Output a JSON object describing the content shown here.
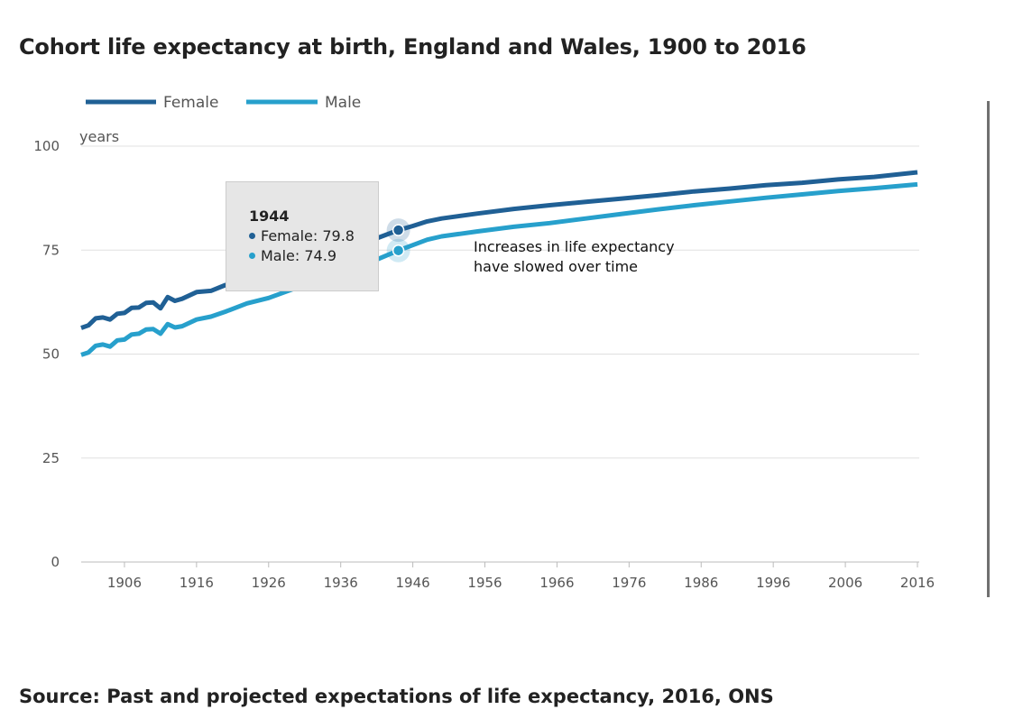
{
  "title": "Cohort life expectancy at birth, England and Wales, 1900 to 2016",
  "source": "Source: Past and projected expectations of life expectancy, 2016, ONS",
  "colors": {
    "female": "#206095",
    "male": "#27a0cc",
    "grid": "#e0e0e0",
    "axis": "#bbbbbb"
  },
  "tooltip": {
    "year": "1944",
    "female": "Female: 79.8",
    "male": "Male: 74.9"
  },
  "annotation": [
    "Increases in life expectancy",
    "have slowed over time"
  ],
  "chart_data": {
    "type": "line",
    "title": "Cohort life expectancy at birth, England and Wales, 1900 to 2016",
    "ylabel": "years",
    "xlabel": "",
    "ylim": [
      0,
      100
    ],
    "xlim": [
      1900,
      2016
    ],
    "yticks": [
      0,
      25,
      50,
      75,
      100
    ],
    "xticks": [
      1906,
      1916,
      1926,
      1936,
      1946,
      1956,
      1966,
      1976,
      1986,
      1996,
      2006,
      2016
    ],
    "grid": true,
    "legend_position": "top-left",
    "highlight_year": 1944,
    "series": [
      {
        "name": "Female",
        "color": "#206095",
        "x": [
          1900,
          1901,
          1902,
          1903,
          1904,
          1905,
          1906,
          1907,
          1908,
          1909,
          1910,
          1911,
          1912,
          1913,
          1914,
          1916,
          1918,
          1920,
          1923,
          1926,
          1930,
          1935,
          1940,
          1944,
          1946,
          1948,
          1950,
          1955,
          1960,
          1965,
          1970,
          1975,
          1980,
          1985,
          1990,
          1995,
          2000,
          2005,
          2010,
          2016
        ],
        "values": [
          56.3,
          56.9,
          58.6,
          58.8,
          58.3,
          59.7,
          59.9,
          61.1,
          61.2,
          62.3,
          62.4,
          61.0,
          63.7,
          62.8,
          63.3,
          64.9,
          65.2,
          66.6,
          68.0,
          69.8,
          72.0,
          75.0,
          77.2,
          79.8,
          80.8,
          81.9,
          82.6,
          83.8,
          84.9,
          85.8,
          86.6,
          87.4,
          88.2,
          89.1,
          89.8,
          90.6,
          91.2,
          92.0,
          92.6,
          93.7
        ]
      },
      {
        "name": "Male",
        "color": "#27a0cc",
        "x": [
          1900,
          1901,
          1902,
          1903,
          1904,
          1905,
          1906,
          1907,
          1908,
          1909,
          1910,
          1911,
          1912,
          1913,
          1914,
          1916,
          1918,
          1920,
          1923,
          1926,
          1930,
          1935,
          1940,
          1944,
          1946,
          1948,
          1950,
          1955,
          1960,
          1965,
          1970,
          1975,
          1980,
          1985,
          1990,
          1995,
          2000,
          2005,
          2010,
          2016
        ],
        "values": [
          49.8,
          50.4,
          52.0,
          52.3,
          51.8,
          53.3,
          53.5,
          54.7,
          54.9,
          55.9,
          56.0,
          54.9,
          57.2,
          56.4,
          56.7,
          58.3,
          59.0,
          60.2,
          62.2,
          63.5,
          66.0,
          69.3,
          72.0,
          74.9,
          76.2,
          77.5,
          78.3,
          79.5,
          80.6,
          81.5,
          82.6,
          83.7,
          84.8,
          85.8,
          86.7,
          87.6,
          88.4,
          89.2,
          89.9,
          90.8
        ]
      }
    ]
  }
}
